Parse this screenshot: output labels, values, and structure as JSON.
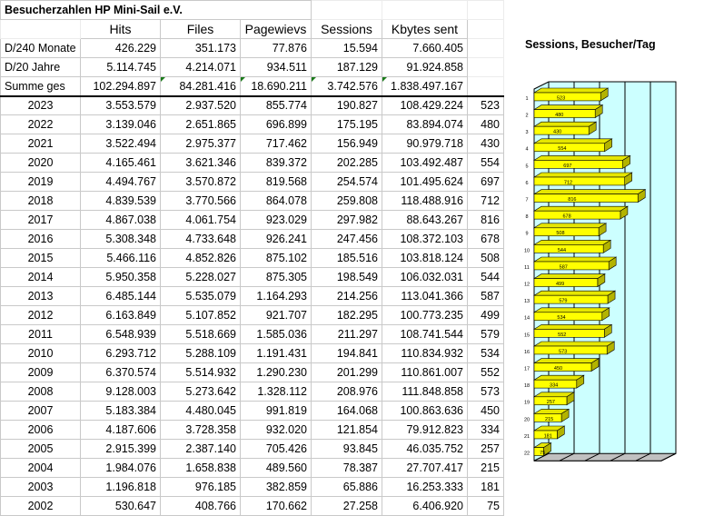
{
  "sheet": {
    "title": "Besucherzahlen HP Mini-Sail e.V.",
    "headers": [
      "Hits",
      "Files",
      "Pagewievs",
      "Sessions",
      "Kbytes sent"
    ],
    "summary_rows": [
      {
        "label": "D/240 Monate",
        "values": [
          "426.229",
          "351.173",
          "77.876",
          "15.594",
          "7.660.405"
        ]
      },
      {
        "label": "D/20 Jahre",
        "values": [
          "5.114.745",
          "4.214.071",
          "934.511",
          "187.129",
          "91.924.858"
        ]
      },
      {
        "label": "Summe ges",
        "values": [
          "102.294.897",
          "84.281.416",
          "18.690.211",
          "3.742.576",
          "1.838.497.167"
        ]
      }
    ],
    "year_rows": [
      {
        "year": "2023",
        "hits": "3.553.579",
        "files": "2.937.520",
        "pageviews": "855.774",
        "sessions": "190.827",
        "kbytes": "108.429.224",
        "per_day": "523"
      },
      {
        "year": "2022",
        "hits": "3.139.046",
        "files": "2.651.865",
        "pageviews": "696.899",
        "sessions": "175.195",
        "kbytes": "83.894.074",
        "per_day": "480"
      },
      {
        "year": "2021",
        "hits": "3.522.494",
        "files": "2.975.377",
        "pageviews": "717.462",
        "sessions": "156.949",
        "kbytes": "90.979.718",
        "per_day": "430"
      },
      {
        "year": "2020",
        "hits": "4.165.461",
        "files": "3.621.346",
        "pageviews": "839.372",
        "sessions": "202.285",
        "kbytes": "103.492.487",
        "per_day": "554"
      },
      {
        "year": "2019",
        "hits": "4.494.767",
        "files": "3.570.872",
        "pageviews": "819.568",
        "sessions": "254.574",
        "kbytes": "101.495.624",
        "per_day": "697"
      },
      {
        "year": "2018",
        "hits": "4.839.539",
        "files": "3.770.566",
        "pageviews": "864.078",
        "sessions": "259.808",
        "kbytes": "118.488.916",
        "per_day": "712"
      },
      {
        "year": "2017",
        "hits": "4.867.038",
        "files": "4.061.754",
        "pageviews": "923.029",
        "sessions": "297.982",
        "kbytes": "88.643.267",
        "per_day": "816"
      },
      {
        "year": "2016",
        "hits": "5.308.348",
        "files": "4.733.648",
        "pageviews": "926.241",
        "sessions": "247.456",
        "kbytes": "108.372.103",
        "per_day": "678"
      },
      {
        "year": "2015",
        "hits": "5.466.116",
        "files": "4.852.826",
        "pageviews": "875.102",
        "sessions": "185.516",
        "kbytes": "103.818.124",
        "per_day": "508"
      },
      {
        "year": "2014",
        "hits": "5.950.358",
        "files": "5.228.027",
        "pageviews": "875.305",
        "sessions": "198.549",
        "kbytes": "106.032.031",
        "per_day": "544"
      },
      {
        "year": "2013",
        "hits": "6.485.144",
        "files": "5.535.079",
        "pageviews": "1.164.293",
        "sessions": "214.256",
        "kbytes": "113.041.366",
        "per_day": "587"
      },
      {
        "year": "2012",
        "hits": "6.163.849",
        "files": "5.107.852",
        "pageviews": "921.707",
        "sessions": "182.295",
        "kbytes": "100.773.235",
        "per_day": "499"
      },
      {
        "year": "2011",
        "hits": "6.548.939",
        "files": "5.518.669",
        "pageviews": "1.585.036",
        "sessions": "211.297",
        "kbytes": "108.741.544",
        "per_day": "579"
      },
      {
        "year": "2010",
        "hits": "6.293.712",
        "files": "5.288.109",
        "pageviews": "1.191.431",
        "sessions": "194.841",
        "kbytes": "110.834.932",
        "per_day": "534"
      },
      {
        "year": "2009",
        "hits": "6.370.574",
        "files": "5.514.932",
        "pageviews": "1.290.230",
        "sessions": "201.299",
        "kbytes": "110.861.007",
        "per_day": "552"
      },
      {
        "year": "2008",
        "hits": "9.128.003",
        "files": "5.273.642",
        "pageviews": "1.328.112",
        "sessions": "208.976",
        "kbytes": "111.848.858",
        "per_day": "573"
      },
      {
        "year": "2007",
        "hits": "5.183.384",
        "files": "4.480.045",
        "pageviews": "991.819",
        "sessions": "164.068",
        "kbytes": "100.863.636",
        "per_day": "450"
      },
      {
        "year": "2006",
        "hits": "4.187.606",
        "files": "3.728.358",
        "pageviews": "932.020",
        "sessions": "121.854",
        "kbytes": "79.912.823",
        "per_day": "334"
      },
      {
        "year": "2005",
        "hits": "2.915.399",
        "files": "2.387.140",
        "pageviews": "705.426",
        "sessions": "93.845",
        "kbytes": "46.035.752",
        "per_day": "257"
      },
      {
        "year": "2004",
        "hits": "1.984.076",
        "files": "1.658.838",
        "pageviews": "489.560",
        "sessions": "78.387",
        "kbytes": "27.707.417",
        "per_day": "215"
      },
      {
        "year": "2003",
        "hits": "1.196.818",
        "files": "976.185",
        "pageviews": "382.859",
        "sessions": "65.886",
        "kbytes": "16.253.333",
        "per_day": "181"
      },
      {
        "year": "2002",
        "hits": "530.647",
        "files": "408.766",
        "pageviews": "170.662",
        "sessions": "27.258",
        "kbytes": "6.406.920",
        "per_day": "75"
      }
    ]
  },
  "chart_data": {
    "type": "bar",
    "orientation": "horizontal",
    "style": "3d",
    "title": "Sessions, Besucher/Tag",
    "categories": [
      "1",
      "2",
      "3",
      "4",
      "5",
      "6",
      "7",
      "8",
      "9",
      "10",
      "11",
      "12",
      "13",
      "14",
      "15",
      "16",
      "17",
      "18",
      "19",
      "20",
      "21",
      "22"
    ],
    "values": [
      523,
      480,
      430,
      554,
      697,
      712,
      816,
      678,
      508,
      544,
      587,
      499,
      579,
      534,
      552,
      573,
      450,
      334,
      257,
      215,
      181,
      75
    ],
    "xlim": [
      0,
      1000
    ],
    "grid": true,
    "legend": "none",
    "bar_color": "#ffff00",
    "wall_color": "#ccffff"
  }
}
